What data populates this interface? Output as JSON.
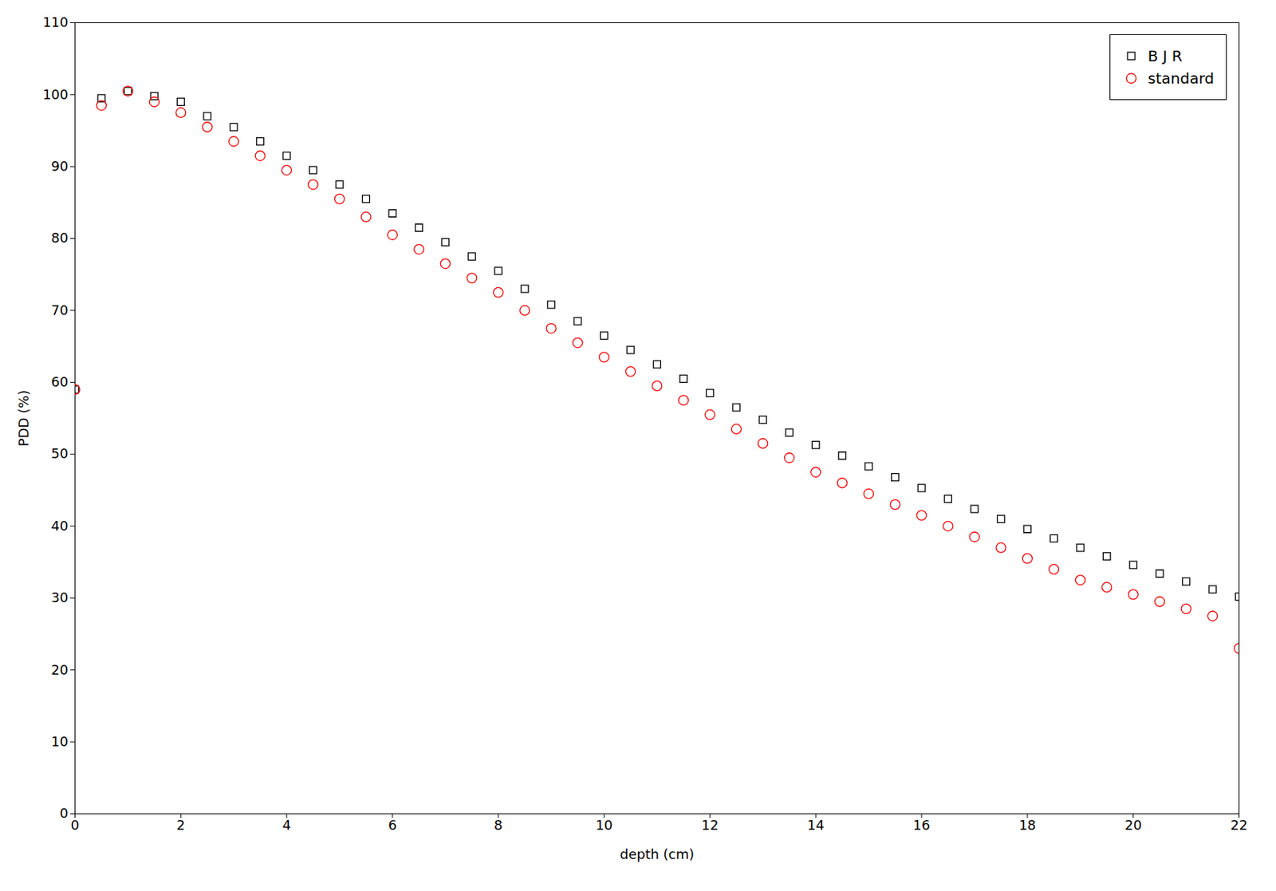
{
  "chart_data": {
    "type": "scatter",
    "xlabel": "depth (cm)",
    "ylabel": "PDD (%)",
    "xlim": [
      0,
      22
    ],
    "ylim": [
      0,
      110
    ],
    "xticks": [
      0,
      2,
      4,
      6,
      8,
      10,
      12,
      14,
      16,
      18,
      20,
      22
    ],
    "yticks": [
      0,
      10,
      20,
      30,
      40,
      50,
      60,
      70,
      80,
      90,
      100,
      110
    ],
    "grid": false,
    "legend": "upper right",
    "x": [
      0.0,
      0.5,
      1.0,
      1.5,
      2.0,
      2.5,
      3.0,
      3.5,
      4.0,
      4.5,
      5.0,
      5.5,
      6.0,
      6.5,
      7.0,
      7.5,
      8.0,
      8.5,
      9.0,
      9.5,
      10.0,
      10.5,
      11.0,
      11.5,
      12.0,
      12.5,
      13.0,
      13.5,
      14.0,
      14.5,
      15.0,
      15.5,
      16.0,
      16.5,
      17.0,
      17.5,
      18.0,
      18.5,
      19.0,
      19.5,
      20.0,
      20.5,
      21.0,
      21.5,
      22.0
    ],
    "series": [
      {
        "name": "B J R",
        "color": "#000000",
        "marker": "square",
        "values": [
          59.0,
          99.5,
          100.5,
          99.8,
          99.0,
          97.0,
          95.5,
          93.5,
          91.5,
          89.5,
          87.5,
          85.5,
          83.5,
          81.5,
          79.5,
          77.5,
          75.5,
          73.0,
          70.8,
          68.5,
          66.5,
          64.5,
          62.5,
          60.5,
          58.5,
          56.5,
          54.8,
          53.0,
          51.3,
          49.8,
          48.3,
          46.8,
          45.3,
          43.8,
          42.4,
          41.0,
          39.6,
          38.3,
          37.0,
          35.8,
          34.6,
          33.4,
          32.3,
          31.2,
          30.2
        ]
      },
      {
        "name": "standard",
        "color": "#ff0000",
        "marker": "circle",
        "values": [
          59.0,
          98.5,
          100.5,
          99.0,
          97.5,
          95.5,
          93.5,
          91.5,
          89.5,
          87.5,
          85.5,
          83.0,
          80.5,
          78.5,
          76.5,
          74.5,
          72.5,
          70.0,
          67.5,
          65.5,
          63.5,
          61.5,
          59.5,
          57.5,
          55.5,
          53.5,
          51.5,
          49.5,
          47.5,
          46.0,
          44.5,
          43.0,
          41.5,
          40.0,
          38.5,
          37.0,
          35.5,
          34.0,
          32.5,
          31.5,
          30.5,
          29.5,
          28.5,
          27.5,
          23.0
        ]
      }
    ]
  }
}
